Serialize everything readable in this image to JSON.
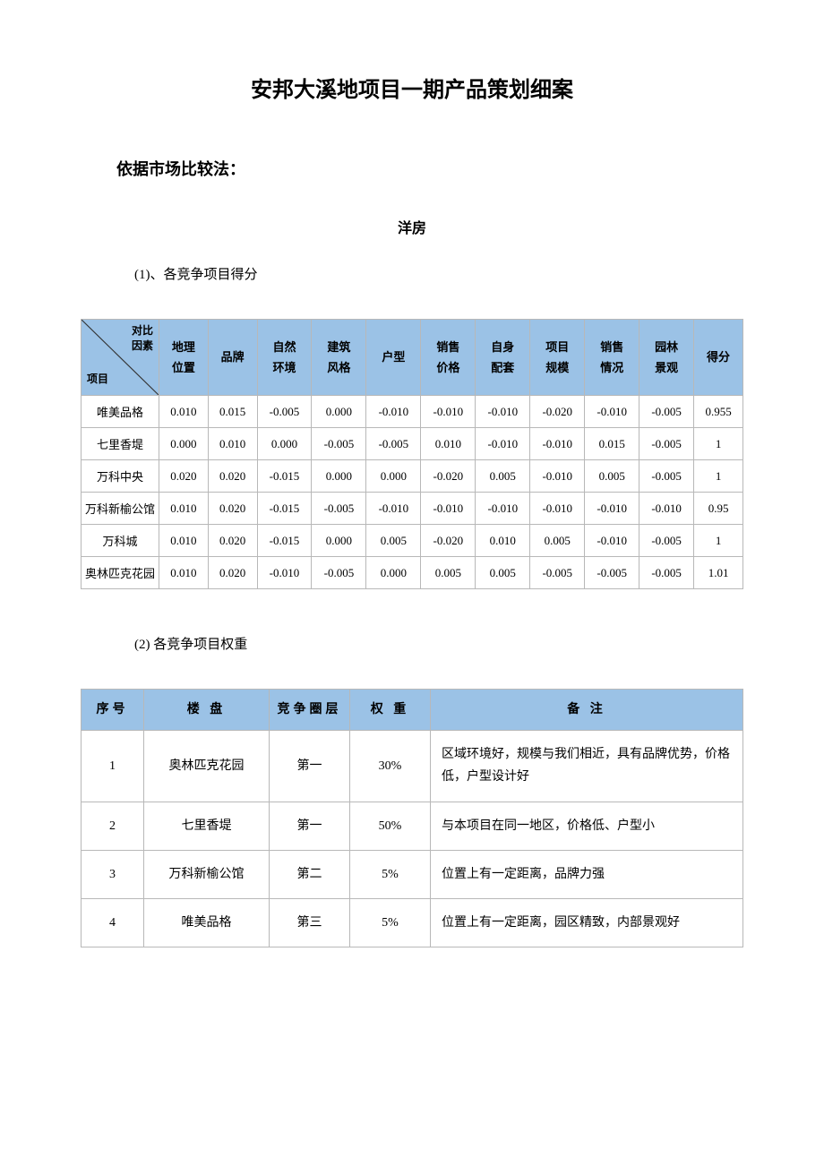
{
  "title": "安邦大溪地项目一期产品策划细案",
  "subtitle": "依据市场比较法：",
  "section_header": "洋房",
  "list1": "(1)、各竞争项目得分",
  "list2": "(2)  各竞争项目权重",
  "t1": {
    "diag_top1": "对比",
    "diag_top2": "因素",
    "diag_bottom": "项目",
    "headers": [
      "地理位置",
      "品牌",
      "自然环境",
      "建筑风格",
      "户型",
      "销售价格",
      "自身配套",
      "项目规模",
      "销售情况",
      "园林景观",
      "得分"
    ],
    "rows": [
      {
        "name": "唯美品格",
        "v": [
          "0.010",
          "0.015",
          "-0.005",
          "0.000",
          "-0.010",
          "-0.010",
          "-0.010",
          "-0.020",
          "-0.010",
          "-0.005",
          "0.955"
        ]
      },
      {
        "name": "七里香堤",
        "v": [
          "0.000",
          "0.010",
          "0.000",
          "-0.005",
          "-0.005",
          "0.010",
          "-0.010",
          "-0.010",
          "0.015",
          "-0.005",
          "1"
        ]
      },
      {
        "name": "万科中央",
        "v": [
          "0.020",
          "0.020",
          "-0.015",
          "0.000",
          "0.000",
          "-0.020",
          "0.005",
          "-0.010",
          "0.005",
          "-0.005",
          "1"
        ]
      },
      {
        "name": "万科新榆公馆",
        "v": [
          "0.010",
          "0.020",
          "-0.015",
          "-0.005",
          "-0.010",
          "-0.010",
          "-0.010",
          "-0.010",
          "-0.010",
          "-0.010",
          "0.95"
        ]
      },
      {
        "name": "万科城",
        "v": [
          "0.010",
          "0.020",
          "-0.015",
          "0.000",
          "0.005",
          "-0.020",
          "0.010",
          "0.005",
          "-0.010",
          "-0.005",
          "1"
        ]
      },
      {
        "name": "奥林匹克花园",
        "v": [
          "0.010",
          "0.020",
          "-0.010",
          "-0.005",
          "0.000",
          "0.005",
          "0.005",
          "-0.005",
          "-0.005",
          "-0.005",
          "1.01"
        ]
      }
    ]
  },
  "t2": {
    "headers": [
      "序号",
      "楼 盘",
      "竞争圈层",
      "权 重",
      "备  注"
    ],
    "rows": [
      {
        "c": [
          "1",
          "奥林匹克花园",
          "第一",
          "30%",
          "区域环境好，规模与我们相近，具有品牌优势，价格低，户型设计好"
        ]
      },
      {
        "c": [
          "2",
          "七里香堤",
          "第一",
          "50%",
          "与本项目在同一地区，价格低、户型小"
        ]
      },
      {
        "c": [
          "3",
          "万科新榆公馆",
          "第二",
          "5%",
          "位置上有一定距离，品牌力强"
        ]
      },
      {
        "c": [
          "4",
          "唯美品格",
          "第三",
          "5%",
          "位置上有一定距离，园区精致，内部景观好"
        ]
      }
    ]
  }
}
